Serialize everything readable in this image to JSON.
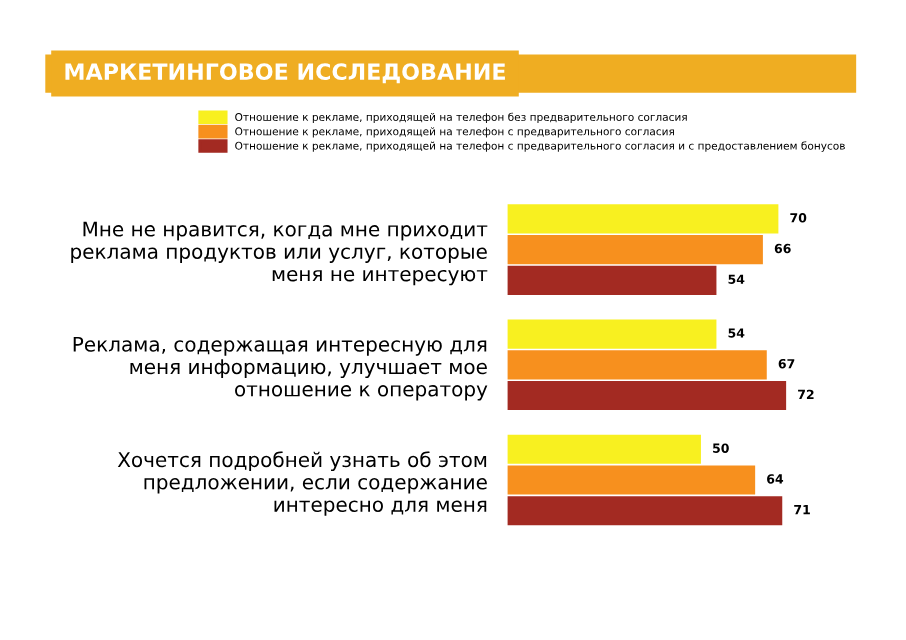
{
  "chart_data": {
    "type": "bar",
    "orientation": "horizontal",
    "title": "МАРКЕТИНГОВОЕ ИССЛЕДОВАНИЕ",
    "categories": [
      "Мне не нравится, когда мне приходит\nреклама продуктов или услуг, которые\nменя не интересуют",
      "Реклама, содержащая интересную для\nменя информацию, улучшает мое\nотношение к оператору",
      "Хочется подробней узнать об этом\nпредложении, если содержание\nинтересно для меня"
    ],
    "series": [
      {
        "name": "Отношение к рекламе, приходящей на телефон без предварительного согласия",
        "color": "#f8f020",
        "values": [
          70,
          54,
          50
        ]
      },
      {
        "name": "Отношение к рекламе, приходящей на телефон с предварительного согласия",
        "color": "#f7901e",
        "values": [
          66,
          67,
          64
        ]
      },
      {
        "name": "Отношение к рекламе, приходящей на телефон с предварительного согласия и с предоставлением бонусов",
        "color": "#a32a22",
        "values": [
          54,
          72,
          71
        ]
      }
    ],
    "data_labels": true,
    "legend": "top",
    "grid": false,
    "tick_labels": "y"
  }
}
